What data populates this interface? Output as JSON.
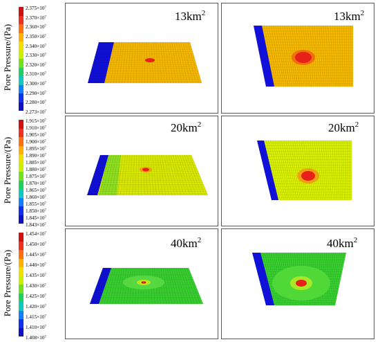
{
  "figure": {
    "ylabel": "Pore Pressure/(Pa)",
    "rows": [
      {
        "id": "row-13",
        "area_label": "13km",
        "area_exponent": "2",
        "legend_ticks": [
          "2.375×10",
          "2.370×10",
          "2.360×10",
          "2.350×10",
          "2.340×10",
          "2.330×10",
          "2.320×10",
          "2.310×10",
          "2.300×10",
          "2.290×10",
          "2.280×10",
          "2.273×10"
        ],
        "tick_exponent": "7",
        "left_plate_color": "#f5b800",
        "right_plate_color": "#f5b800",
        "hotspot_color": "#e8201a",
        "edge_color": "#1010d8"
      },
      {
        "id": "row-20",
        "area_label": "20km",
        "area_exponent": "2",
        "legend_ticks": [
          "1.915×10",
          "1.910×10",
          "1.905×10",
          "1.900×10",
          "1.895×10",
          "1.890×10",
          "1.885×10",
          "1.880×10",
          "1.875×10",
          "1.870×10",
          "1.865×10",
          "1.860×10",
          "1.855×10",
          "1.850×10",
          "1.845×10",
          "1.843×10"
        ],
        "tick_exponent": "7",
        "left_plate_color": "#d8e800",
        "right_plate_color": "#d8f000",
        "hotspot_color": "#e8201a",
        "edge_color": "#1010d8"
      },
      {
        "id": "row-40",
        "area_label": "40km",
        "area_exponent": "2",
        "legend_ticks": [
          "1.454×10",
          "1.450×10",
          "1.445×10",
          "1.440×10",
          "1.435×10",
          "1.430×10",
          "1.425×10",
          "1.420×10",
          "1.415×10",
          "1.410×10",
          "1.408×10"
        ],
        "tick_exponent": "7",
        "left_plate_color": "#38d030",
        "right_plate_color": "#38d030",
        "hotspot_color": "#e8201a",
        "edge_color": "#1010d8"
      }
    ]
  },
  "colormap": [
    "#d01010",
    "#f03020",
    "#ff7010",
    "#ffb000",
    "#f0e000",
    "#c8f000",
    "#70e020",
    "#20d060",
    "#10c8c0",
    "#1080ff",
    "#1030f0",
    "#1010c0"
  ]
}
